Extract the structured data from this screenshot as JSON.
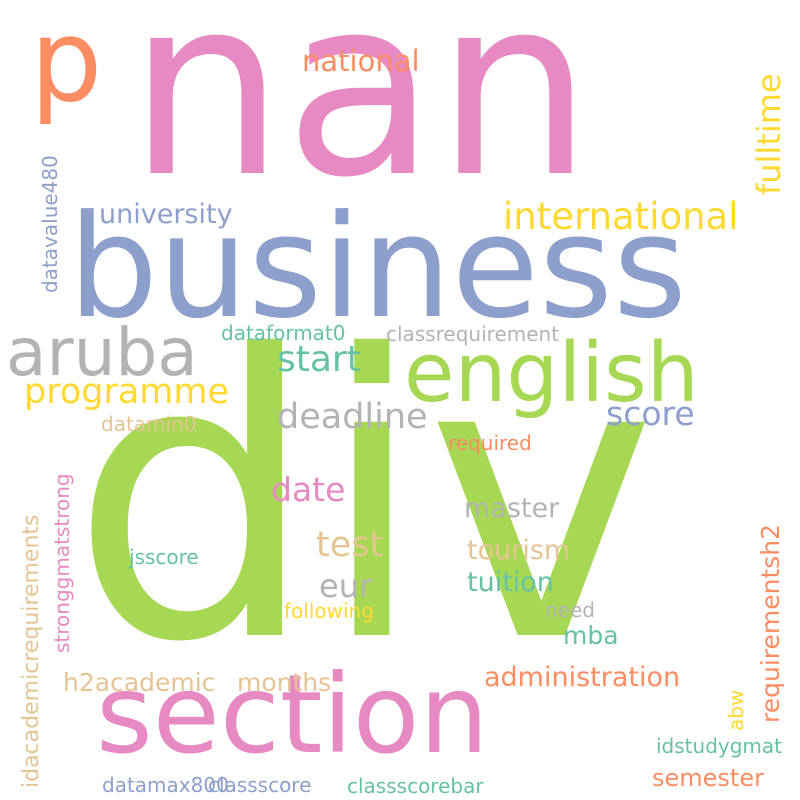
{
  "palette": {
    "pink": "#e78ac3",
    "green": "#a6d854",
    "blue": "#8da0cb",
    "orange": "#fc8d62",
    "grey": "#b3b3b3",
    "yellow": "#ffd92f",
    "teal": "#66c2a5",
    "tan": "#e5c494"
  },
  "words": [
    {
      "text": "nan",
      "color": "#e78ac3"
    },
    {
      "text": "p",
      "color": "#fc8d62"
    },
    {
      "text": "div",
      "color": "#a6d854"
    },
    {
      "text": "business",
      "color": "#8da0cb"
    },
    {
      "text": "section",
      "color": "#e78ac3"
    },
    {
      "text": "english",
      "color": "#a6d854"
    },
    {
      "text": "aruba",
      "color": "#b3b3b3"
    },
    {
      "text": "international",
      "color": "#ffd92f"
    },
    {
      "text": "national",
      "color": "#fc8d62"
    },
    {
      "text": "fulltime",
      "color": "#ffd92f"
    },
    {
      "text": "university",
      "color": "#8da0cb"
    },
    {
      "text": "programme",
      "color": "#ffd92f"
    },
    {
      "text": "start",
      "color": "#66c2a5"
    },
    {
      "text": "deadline",
      "color": "#b3b3b3"
    },
    {
      "text": "score",
      "color": "#8da0cb"
    },
    {
      "text": "date",
      "color": "#e78ac3"
    },
    {
      "text": "test",
      "color": "#e5c494"
    },
    {
      "text": "eur",
      "color": "#b3b3b3"
    },
    {
      "text": "master",
      "color": "#b3b3b3"
    },
    {
      "text": "tourism",
      "color": "#e5c494"
    },
    {
      "text": "tuition",
      "color": "#66c2a5"
    },
    {
      "text": "mba",
      "color": "#66c2a5"
    },
    {
      "text": "administration",
      "color": "#fc8d62"
    },
    {
      "text": "months",
      "color": "#e5c494"
    },
    {
      "text": "h2academic",
      "color": "#e5c494"
    },
    {
      "text": "requirementsh2",
      "color": "#fc8d62"
    },
    {
      "text": "semester",
      "color": "#fc8d62"
    },
    {
      "text": "idstudygmat",
      "color": "#66c2a5"
    },
    {
      "text": "classscorebar",
      "color": "#66c2a5"
    },
    {
      "text": "classscore",
      "color": "#8da0cb"
    },
    {
      "text": "datamax800",
      "color": "#8da0cb"
    },
    {
      "text": "need",
      "color": "#b3b3b3"
    },
    {
      "text": "following",
      "color": "#ffd92f"
    },
    {
      "text": "jsscore",
      "color": "#66c2a5"
    },
    {
      "text": "abw",
      "color": "#ffd92f"
    },
    {
      "text": "required",
      "color": "#fc8d62"
    },
    {
      "text": "datamin0",
      "color": "#e5c494"
    },
    {
      "text": "dataformat0",
      "color": "#66c2a5"
    },
    {
      "text": "classrequirement",
      "color": "#b3b3b3"
    },
    {
      "text": "datavalue480",
      "color": "#8da0cb"
    },
    {
      "text": "idacademicrequirements",
      "color": "#e5c494"
    },
    {
      "text": "stronggmatstrong",
      "color": "#e78ac3"
    }
  ]
}
